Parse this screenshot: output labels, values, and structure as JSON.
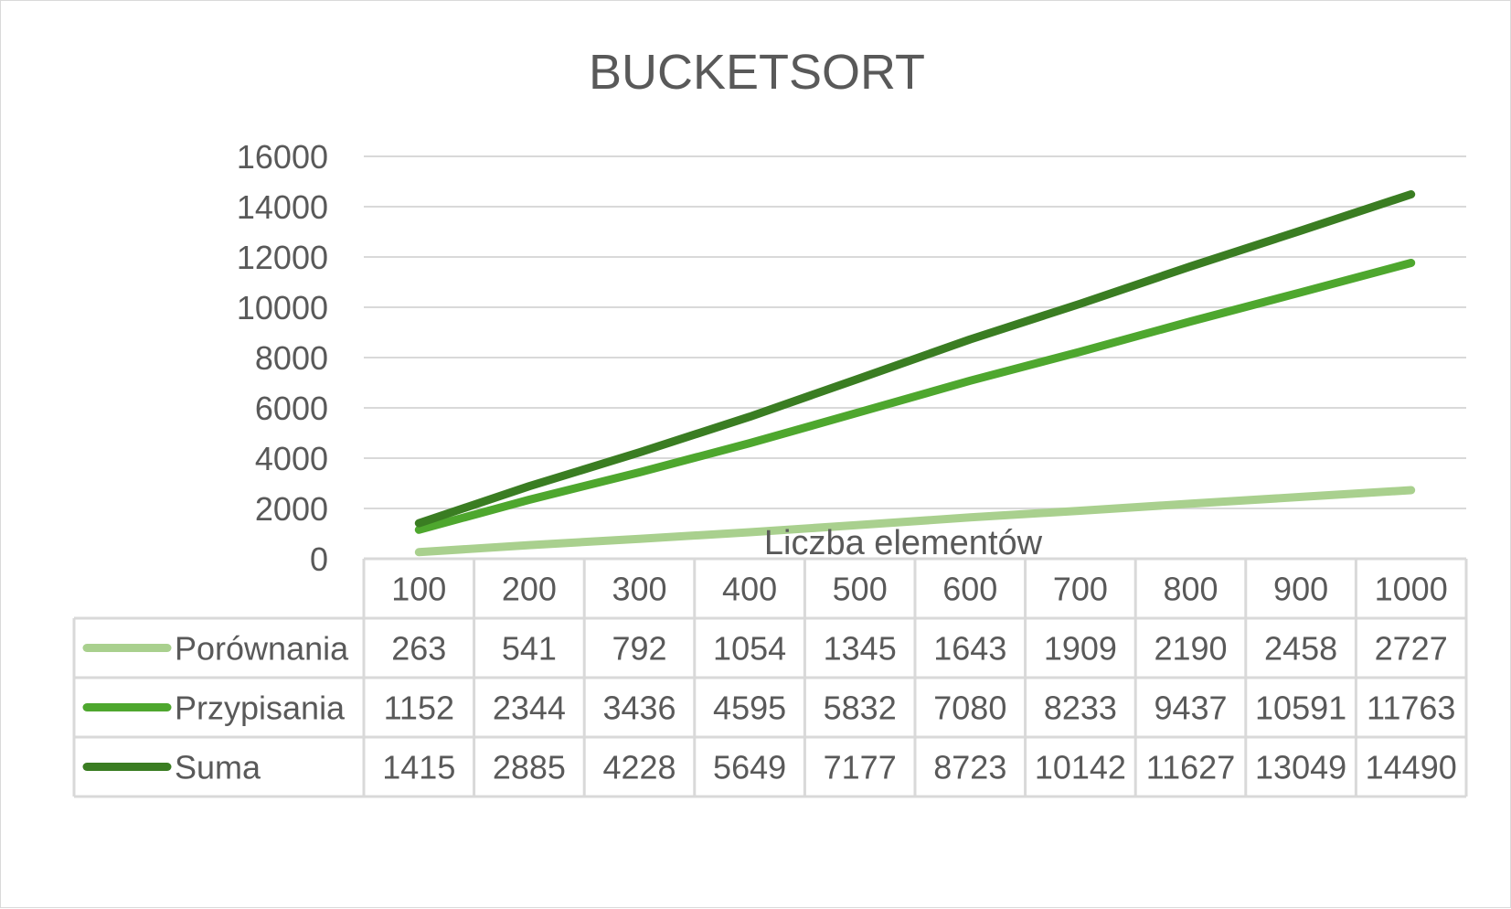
{
  "chart_data": {
    "type": "line",
    "title": "BUCKETSORT",
    "xlabel": "Liczba elementów",
    "ylabel": "",
    "categories": [
      "100",
      "200",
      "300",
      "400",
      "500",
      "600",
      "700",
      "800",
      "900",
      "1000"
    ],
    "ylim": [
      0,
      16000
    ],
    "yticks": [
      "0",
      "2000",
      "4000",
      "6000",
      "8000",
      "10000",
      "12000",
      "14000",
      "16000"
    ],
    "grid": true,
    "legend": "data-table",
    "series": [
      {
        "name": "Porównania",
        "color": "#a9d08e",
        "values": [
          263,
          541,
          792,
          1054,
          1345,
          1643,
          1909,
          2190,
          2458,
          2727
        ]
      },
      {
        "name": "Przypisania",
        "color": "#4ea72e",
        "values": [
          1152,
          2344,
          3436,
          4595,
          5832,
          7080,
          8233,
          9437,
          10591,
          11763
        ]
      },
      {
        "name": "Suma",
        "color": "#3a7d22",
        "values": [
          1415,
          2885,
          4228,
          5649,
          7177,
          8723,
          10142,
          11627,
          13049,
          14490
        ]
      }
    ]
  }
}
